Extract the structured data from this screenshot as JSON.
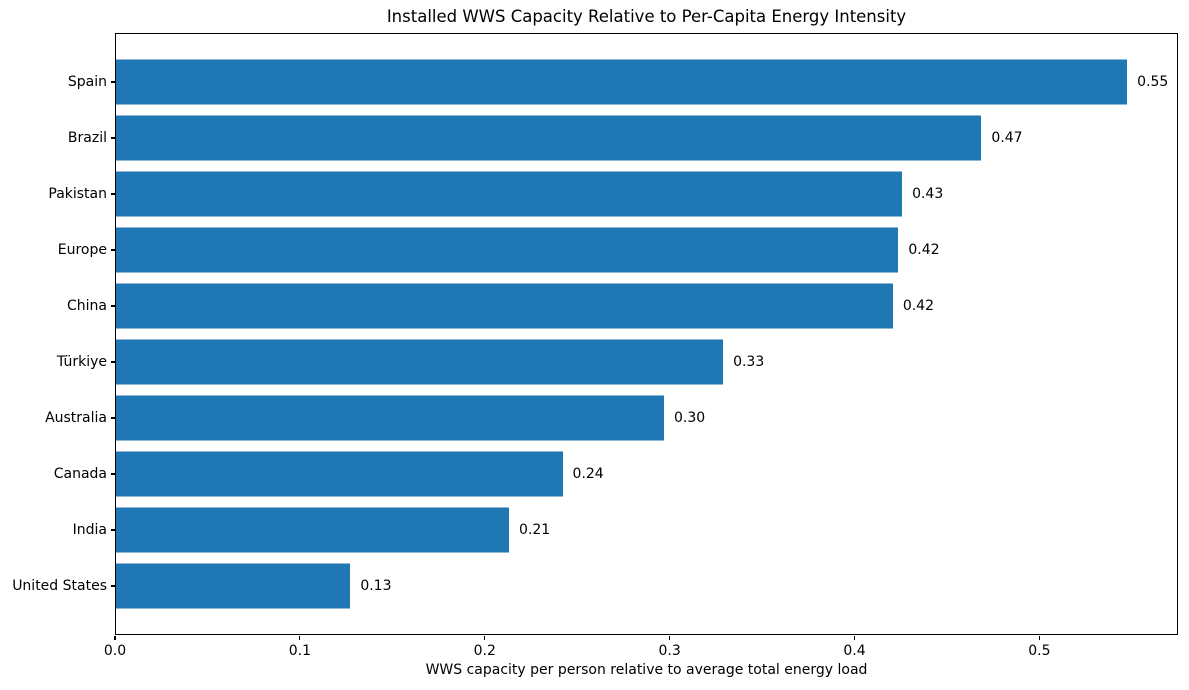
{
  "chart_data": {
    "type": "bar",
    "orientation": "horizontal",
    "title": "Installed WWS Capacity Relative to Per-Capita Energy Intensity",
    "xlabel": "WWS capacity per person relative to average total energy load",
    "ylabel": "",
    "categories": [
      "Spain",
      "Brazil",
      "Pakistan",
      "Europe",
      "China",
      "Türkiye",
      "Australia",
      "Canada",
      "India",
      "United States"
    ],
    "values": [
      0.548,
      0.469,
      0.426,
      0.424,
      0.421,
      0.329,
      0.297,
      0.242,
      0.213,
      0.127
    ],
    "value_labels": [
      "0.55",
      "0.47",
      "0.43",
      "0.42",
      "0.42",
      "0.33",
      "0.30",
      "0.24",
      "0.21",
      "0.13"
    ],
    "xticks": [
      0.0,
      0.1,
      0.2,
      0.3,
      0.4,
      0.5
    ],
    "xtick_labels": [
      "0.0",
      "0.1",
      "0.2",
      "0.3",
      "0.4",
      "0.5"
    ],
    "xlim": [
      0,
      0.575
    ],
    "bar_color": "#1f77b4",
    "background_color": "#ffffff",
    "text_color": "#000000",
    "grid": false,
    "legend": null
  }
}
